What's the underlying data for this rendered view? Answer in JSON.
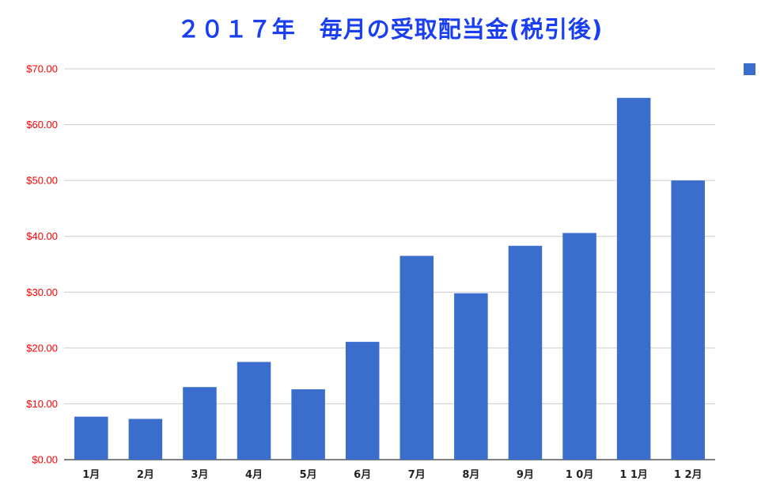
{
  "chart_data": {
    "type": "bar",
    "title": "２０１７年　毎月の受取配当金(税引後)",
    "categories": [
      "1月",
      "2月",
      "3月",
      "4月",
      "5月",
      "6月",
      "7月",
      "8月",
      "9月",
      "1 0月",
      "1 1月",
      "1 2月"
    ],
    "series": [
      {
        "values": [
          7.7,
          7.3,
          13.0,
          17.5,
          12.6,
          21.1,
          36.5,
          29.8,
          38.3,
          40.6,
          64.8,
          50.0
        ]
      }
    ],
    "xlabel": "",
    "ylabel": "",
    "ylim": [
      0,
      70
    ],
    "yticks": [
      "$0.00",
      "$10.00",
      "$20.00",
      "$30.00",
      "$40.00",
      "$50.00",
      "$60.00",
      "$70.00"
    ],
    "grid": true,
    "legend": "top-right",
    "colors": {
      "bar": "#3a6dcc",
      "title": "#1a3ff0",
      "ytick": "#ff0000"
    }
  }
}
